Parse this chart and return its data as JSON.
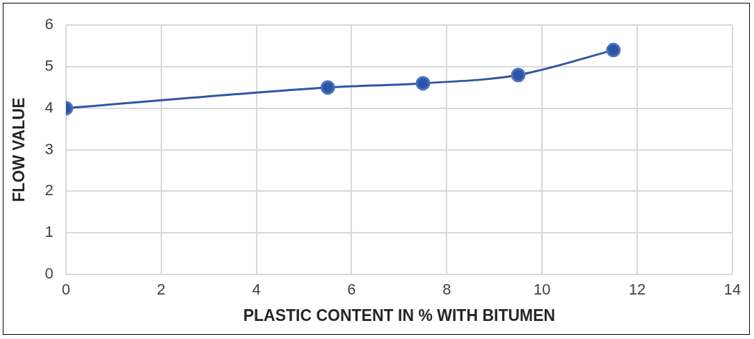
{
  "chart_data": {
    "type": "line",
    "xlabel": "PLASTIC CONTENT IN % WITH BITUMEN",
    "ylabel": "FLOW VALUE",
    "x": [
      0,
      5.5,
      7.5,
      9.5,
      11.5
    ],
    "series": [
      {
        "color": "#2e54a4",
        "values": [
          4,
          4.5,
          4.6,
          4.8,
          5.4
        ]
      }
    ],
    "xlim": [
      0,
      14
    ],
    "xticks": [
      0,
      2,
      4,
      6,
      8,
      10,
      12,
      14
    ],
    "ylim": [
      0,
      6
    ],
    "yticks": [
      0,
      1,
      2,
      3,
      4,
      5,
      6
    ],
    "grid": true,
    "marker": "circle",
    "line_style": "solid",
    "legend": false
  }
}
